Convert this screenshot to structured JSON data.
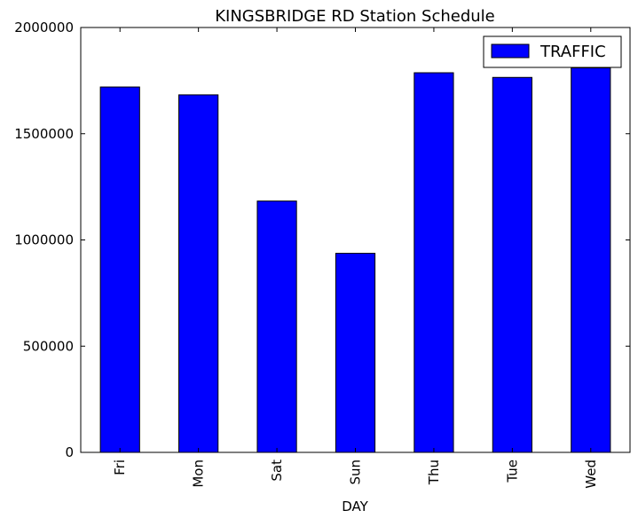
{
  "chart_data": {
    "type": "bar",
    "title": "KINGSBRIDGE RD Station Schedule",
    "xlabel": "DAY",
    "ylabel": "",
    "categories": [
      "Fri",
      "Mon",
      "Sat",
      "Sun",
      "Thu",
      "Tue",
      "Wed"
    ],
    "series": [
      {
        "name": "TRAFFIC",
        "values": [
          1720000,
          1683000,
          1183000,
          937000,
          1787000,
          1765000,
          1810000
        ],
        "color": "#0000ff"
      }
    ],
    "ylim": [
      0,
      2000000
    ],
    "yticks": [
      "0",
      "500000",
      "1000000",
      "1500000",
      "2000000"
    ],
    "legend_position": "top-right",
    "grid": false
  }
}
